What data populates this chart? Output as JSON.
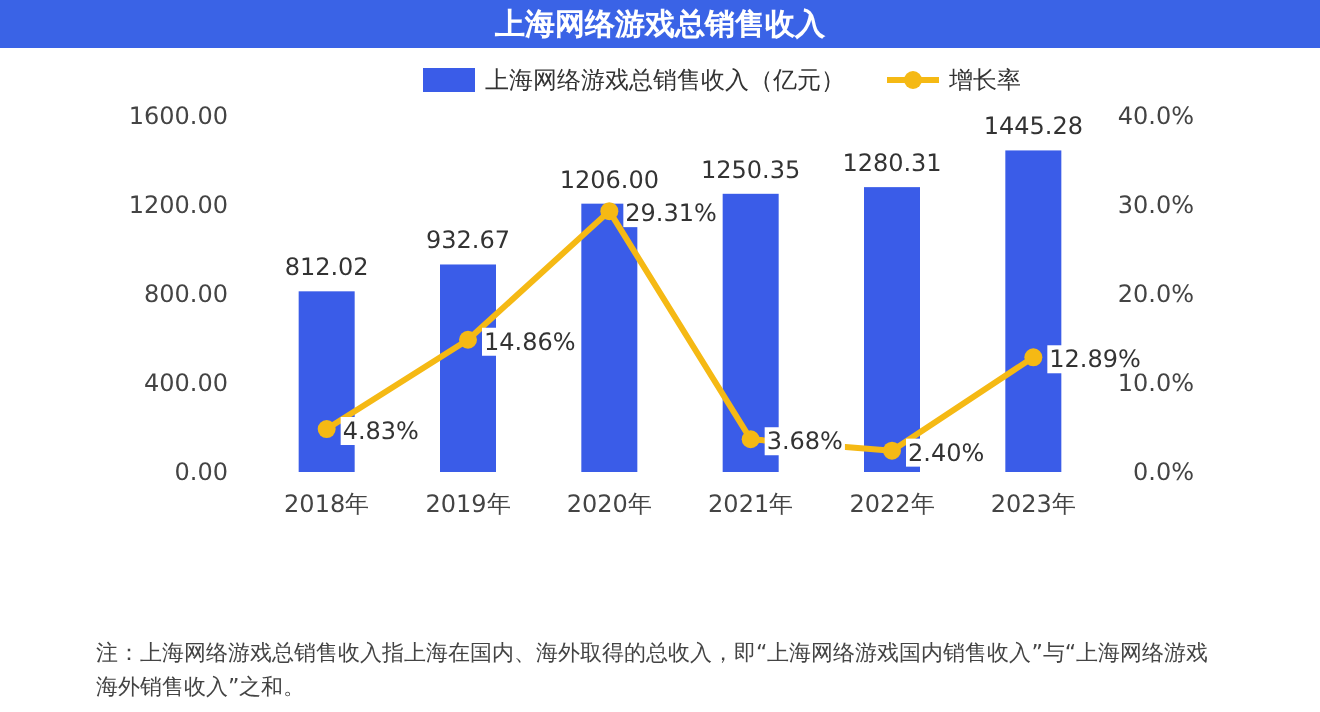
{
  "chart_data": {
    "type": "bar",
    "title": "上海网络游戏总销售收入",
    "categories": [
      "2018年",
      "2019年",
      "2020年",
      "2021年",
      "2022年",
      "2023年"
    ],
    "series": [
      {
        "name": "上海网络游戏总销售收入（亿元）",
        "color": "#3a5ce8",
        "values": [
          812.02,
          932.67,
          1206.0,
          1250.35,
          1280.31,
          1445.28
        ],
        "value_labels": [
          "812.02",
          "932.67",
          "1206.00",
          "1250.35",
          "1280.31",
          "1445.28"
        ]
      },
      {
        "name": "增长率",
        "type": "line",
        "axis": "y2",
        "color": "#f5b914",
        "marker": "circle",
        "values": [
          4.83,
          14.86,
          29.31,
          3.68,
          2.4,
          12.89
        ],
        "value_labels": [
          "4.83%",
          "14.86%",
          "29.31%",
          "3.68%",
          "2.40%",
          "12.89%"
        ]
      }
    ],
    "ylim": [
      0,
      1600
    ],
    "yticks": [
      {
        "value": 0,
        "label": "0.00"
      },
      {
        "value": 400,
        "label": "400.00"
      },
      {
        "value": 800,
        "label": "800.00"
      },
      {
        "value": 1200,
        "label": "1200.00"
      },
      {
        "value": 1600,
        "label": "1600.00"
      }
    ],
    "y2lim": [
      0,
      40
    ],
    "y2ticks": [
      {
        "value": 0,
        "label": "0.0%"
      },
      {
        "value": 10,
        "label": "10.0%"
      },
      {
        "value": 20,
        "label": "20.0%"
      },
      {
        "value": 30,
        "label": "30.0%"
      },
      {
        "value": 40,
        "label": "40.0%"
      }
    ],
    "legend": "top",
    "annotations": [
      "注：上海网络游戏总销售收入指上海在国内、海外取得的总收入，即“上海网络游戏国内销售收入”与“上海网络游戏海外销售收入”之和。"
    ]
  }
}
